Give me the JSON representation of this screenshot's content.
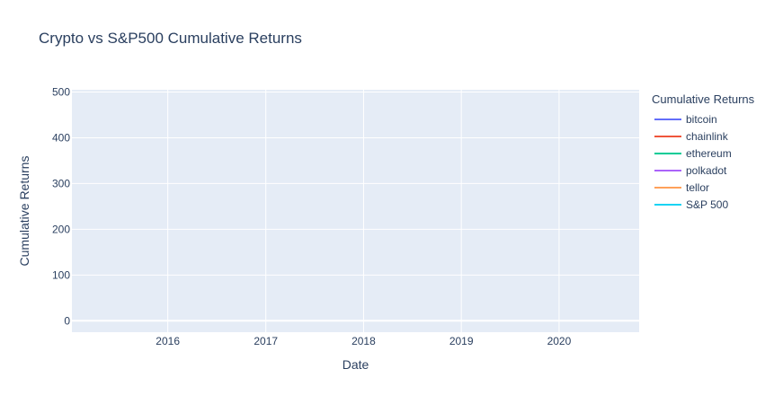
{
  "chart_data": {
    "type": "line",
    "title": "Crypto vs S&P500 Cumulative Returns",
    "xlabel": "Date",
    "ylabel": "Cumulative Returns",
    "x_ticks": [
      "2016",
      "2017",
      "2018",
      "2019",
      "2020"
    ],
    "xlim": [
      "2015-01-08",
      "2020-10-26"
    ],
    "y_ticks": [
      0,
      100,
      200,
      300,
      400,
      500
    ],
    "ylim": [
      -25,
      505
    ],
    "grid": true,
    "legend_title": "Cumulative Returns",
    "legend_placement": "right",
    "series": [
      {
        "name": "bitcoin",
        "color": "#636efa",
        "values": []
      },
      {
        "name": "chainlink",
        "color": "#ef553b",
        "values": []
      },
      {
        "name": "ethereum",
        "color": "#00cc96",
        "values": []
      },
      {
        "name": "polkadot",
        "color": "#ab63fa",
        "values": []
      },
      {
        "name": "tellor",
        "color": "#ffa15a",
        "values": []
      },
      {
        "name": "S&P 500",
        "color": "#19d3f3",
        "values": []
      }
    ]
  }
}
